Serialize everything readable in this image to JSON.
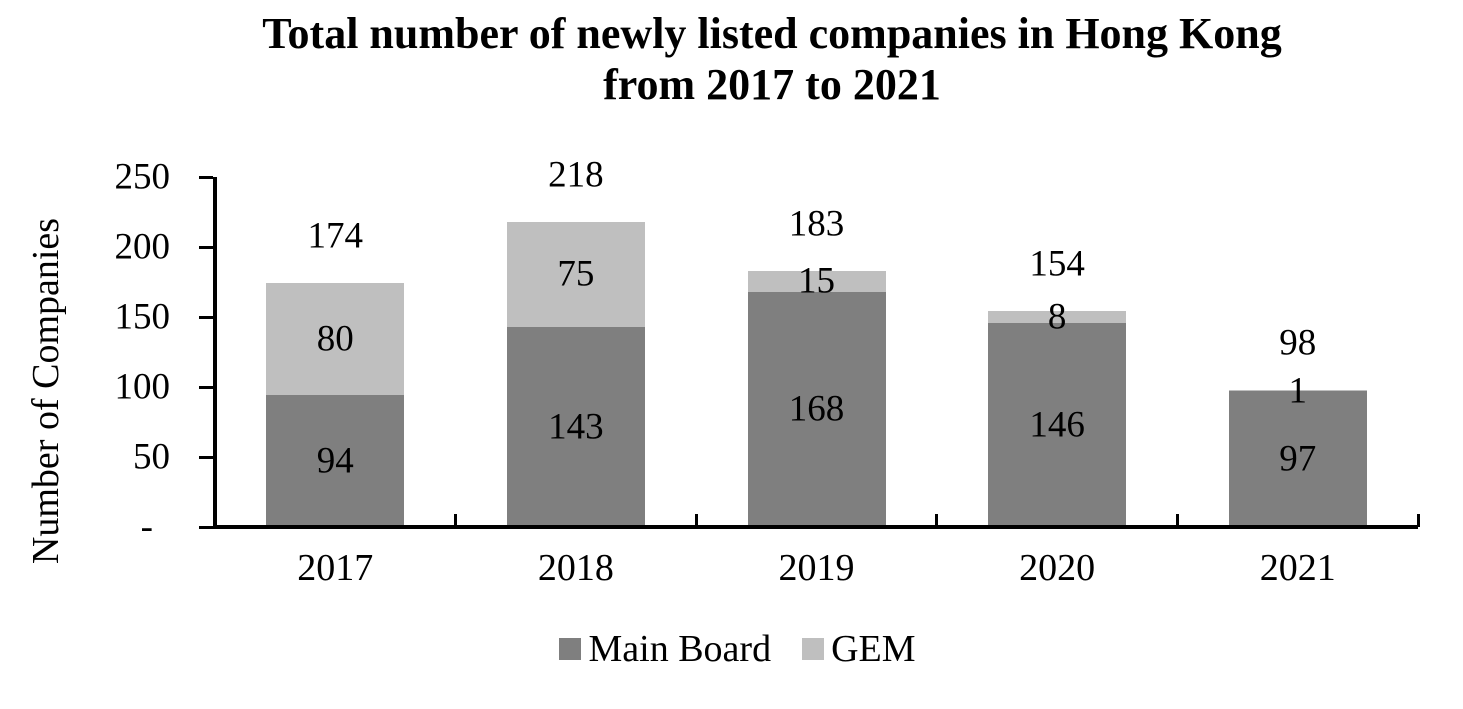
{
  "chart_data": {
    "type": "bar",
    "stacked": true,
    "title_lines": [
      "Total number of newly listed companies in Hong Kong",
      "from 2017 to 2021"
    ],
    "ylabel": "Number of Companies",
    "categories": [
      "2017",
      "2018",
      "2019",
      "2020",
      "2021"
    ],
    "series": [
      {
        "name": "Main Board",
        "color": "#7F7F7F",
        "values": [
          94,
          143,
          168,
          146,
          97
        ]
      },
      {
        "name": "GEM",
        "color": "#BFBFBF",
        "values": [
          80,
          75,
          15,
          8,
          1
        ]
      }
    ],
    "totals": [
      174,
      218,
      183,
      154,
      98
    ],
    "ylim": [
      0,
      250
    ],
    "ytick_values": [
      0,
      50,
      100,
      150,
      200,
      250
    ],
    "ytick_labels": [
      "-",
      "50",
      "100",
      "150",
      "200",
      "250"
    ],
    "grid": false,
    "legend_position": "bottom",
    "axis_color": "#000000",
    "text_color": "#000000",
    "background_color": "#FFFFFF"
  }
}
